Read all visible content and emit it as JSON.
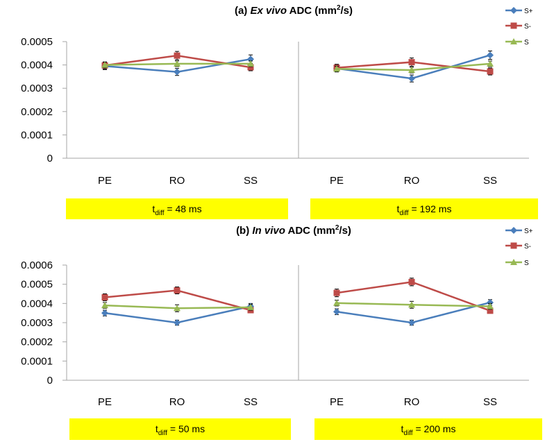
{
  "colors": {
    "S+": "#4a7ebb",
    "S-": "#be4b48",
    "S": "#98b954",
    "highlight": "#ffff00",
    "axis": "#a6a6a6"
  },
  "chart_data": [
    {
      "type": "line",
      "panel": "a",
      "title_parts": [
        "(a) ",
        "Ex vivo",
        " ADC (mm",
        "2",
        "/s)"
      ],
      "ylim": [
        0,
        0.0005
      ],
      "yticks": [
        "0",
        "0.0001",
        "0.0002",
        "0.0003",
        "0.0004",
        "0.0005"
      ],
      "legend": [
        "S+",
        "S-",
        "S"
      ],
      "legend_position": "top-right",
      "subplots": [
        {
          "categories": [
            "PE",
            "RO",
            "SS"
          ],
          "tdiff_label": {
            "t": "t",
            "sub": "diff",
            "rest": " = 48 ms"
          },
          "series": [
            {
              "name": "S+",
              "values": [
                0.000395,
                0.00037,
                0.000425
              ],
              "err": [
                1.5e-05,
                1.5e-05,
                1.8e-05
              ]
            },
            {
              "name": "S-",
              "values": [
                0.000398,
                0.00044,
                0.00039
              ],
              "err": [
                1.5e-05,
                1.8e-05,
                1.5e-05
              ]
            },
            {
              "name": "S",
              "values": [
                0.0004,
                0.000405,
                0.000405
              ],
              "err": [
                1.2e-05,
                1.2e-05,
                1.2e-05
              ]
            }
          ]
        },
        {
          "categories": [
            "PE",
            "RO",
            "SS"
          ],
          "tdiff_label": {
            "t": "t",
            "sub": "diff",
            "rest": " = 192 ms"
          },
          "series": [
            {
              "name": "S+",
              "values": [
                0.000385,
                0.000342,
                0.000442
              ],
              "err": [
                1.5e-05,
                1.5e-05,
                1.8e-05
              ]
            },
            {
              "name": "S-",
              "values": [
                0.000388,
                0.000412,
                0.000372
              ],
              "err": [
                1.5e-05,
                1.8e-05,
                1.5e-05
              ]
            },
            {
              "name": "S",
              "values": [
                0.000383,
                0.000378,
                0.000405
              ],
              "err": [
                1.2e-05,
                1.2e-05,
                1.2e-05
              ]
            }
          ]
        }
      ]
    },
    {
      "type": "line",
      "panel": "b",
      "title_parts": [
        "(b) ",
        "In vivo",
        " ADC (mm",
        "2",
        "/s)"
      ],
      "ylim": [
        0,
        0.0006
      ],
      "yticks": [
        "0",
        "0.0001",
        "0.0002",
        "0.0003",
        "0.0004",
        "0.0005",
        "0.0006"
      ],
      "legend": [
        "S+",
        "S-",
        "S"
      ],
      "legend_position": "top-right",
      "subplots": [
        {
          "categories": [
            "PE",
            "RO",
            "SS"
          ],
          "tdiff_label": {
            "t": "t",
            "sub": "diff",
            "rest": " = 50 ms"
          },
          "series": [
            {
              "name": "S+",
              "values": [
                0.00035,
                0.0003,
                0.000385
              ],
              "err": [
                1.5e-05,
                1.3e-05,
                1.5e-05
              ]
            },
            {
              "name": "S-",
              "values": [
                0.000432,
                0.000468,
                0.000365
              ],
              "err": [
                1.8e-05,
                1.8e-05,
                1.2e-05
              ]
            },
            {
              "name": "S",
              "values": [
                0.00039,
                0.000375,
                0.00038
              ],
              "err": [
                1.5e-05,
                1.8e-05,
                1.5e-05
              ]
            }
          ]
        },
        {
          "categories": [
            "PE",
            "RO",
            "SS"
          ],
          "tdiff_label": {
            "t": "t",
            "sub": "diff",
            "rest": " = 200 ms"
          },
          "series": [
            {
              "name": "S+",
              "values": [
                0.000357,
                0.0003,
                0.000405
              ],
              "err": [
                1.5e-05,
                1.3e-05,
                1.5e-05
              ]
            },
            {
              "name": "S-",
              "values": [
                0.000455,
                0.000512,
                0.000362
              ],
              "err": [
                2e-05,
                2e-05,
                1.2e-05
              ]
            },
            {
              "name": "S",
              "values": [
                0.000402,
                0.000393,
                0.000385
              ],
              "err": [
                1.5e-05,
                1.8e-05,
                1.5e-05
              ]
            }
          ]
        }
      ]
    }
  ]
}
